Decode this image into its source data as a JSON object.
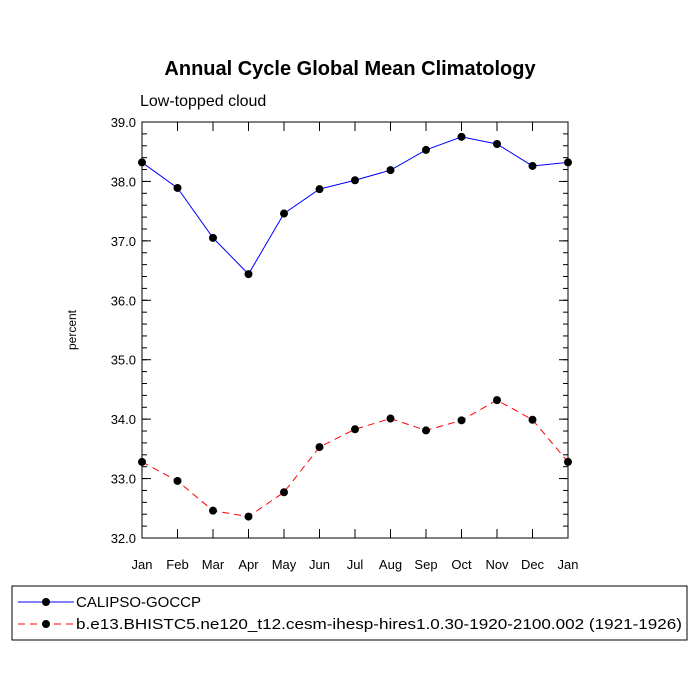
{
  "chart_data": {
    "type": "line",
    "title": "Annual Cycle Global Mean Climatology",
    "subtitle": "Low-topped cloud",
    "ylabel": "percent",
    "xlabel": "",
    "categories": [
      "Jan",
      "Feb",
      "Mar",
      "Apr",
      "May",
      "Jun",
      "Jul",
      "Aug",
      "Sep",
      "Oct",
      "Nov",
      "Dec",
      "Jan"
    ],
    "ylim": [
      32.0,
      39.0
    ],
    "yticks": [
      "32.0",
      "33.0",
      "34.0",
      "35.0",
      "36.0",
      "37.0",
      "38.0",
      "39.0"
    ],
    "legend_position": "bottom",
    "series": [
      {
        "name": "CALIPSO-GOCCP",
        "color": "#0000ff",
        "line_style": "solid",
        "marker": "filled-circle",
        "values": [
          38.32,
          37.89,
          37.05,
          36.44,
          37.46,
          37.87,
          38.02,
          38.19,
          38.53,
          38.75,
          38.63,
          38.26,
          38.32
        ]
      },
      {
        "name": "b.e13.BHISTC5.ne120_t12.cesm-ihesp-hires1.0.30-1920-2100.002 (1921-1926)",
        "color": "#ff0000",
        "line_style": "dashed",
        "marker": "filled-circle",
        "values": [
          33.28,
          32.96,
          32.46,
          32.36,
          32.77,
          33.53,
          33.83,
          34.01,
          33.81,
          33.98,
          34.32,
          33.99,
          33.28
        ]
      }
    ]
  }
}
